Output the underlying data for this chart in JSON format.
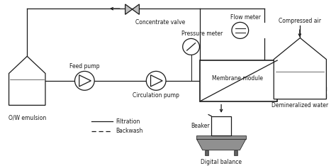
{
  "bg_color": "#ffffff",
  "line_color": "#1a1a1a",
  "tank_fill_ow": "#f5e09a",
  "tank_fill_water": "#b8d4ea",
  "membrane_box_bg": "#ffffff",
  "labels": {
    "ow_emulsion": "O/W emulsion",
    "feed_pump": "Feed pump",
    "circulation_pump": "Circulation pump",
    "pressure_meter": "Pressure meter",
    "membrane_module": "Membrane module",
    "concentrate_valve": "Concentrate valve",
    "flow_meter": "Flow meter",
    "compressed_air": "Compressed air",
    "demineralized_water": "Demineralized water",
    "beaker": "Beaker",
    "digital_balance": "Digital balance",
    "filtration": "Filtration",
    "backwash": "Backwash"
  },
  "font_size": 5.5
}
